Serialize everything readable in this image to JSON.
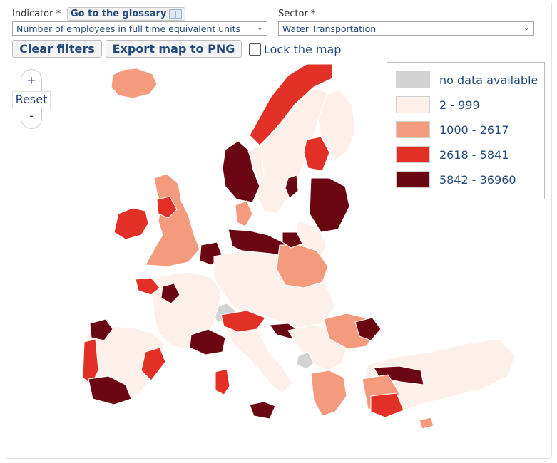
{
  "filters": {
    "indicator_label": "Indicator *",
    "glossary_label": "Go to the glossary",
    "indicator_value": "Number of employees in full time equivalent units",
    "sector_label": "Sector *",
    "sector_value": "Water Transportation"
  },
  "buttons": {
    "clear_filters": "Clear filters",
    "export_png": "Export map to PNG",
    "lock_map": "Lock the map"
  },
  "zoom": {
    "plus": "+",
    "reset": "Reset",
    "minus": "-"
  },
  "legend": [
    {
      "label": "no data available",
      "color": "#d3d3d3"
    },
    {
      "label": "2 - 999",
      "color": "#fdf0ea"
    },
    {
      "label": "1000 - 2617",
      "color": "#f59b7d"
    },
    {
      "label": "2618 - 5841",
      "color": "#e33027"
    },
    {
      "label": "5842 - 36960",
      "color": "#6b0712"
    }
  ],
  "map": {
    "regions": [
      {
        "name": "iceland",
        "class": 2
      },
      {
        "name": "ireland",
        "class": 3
      },
      {
        "name": "great-britain",
        "class": 2
      },
      {
        "name": "scotland-north",
        "class": 3
      },
      {
        "name": "norway-west",
        "class": 4
      },
      {
        "name": "norway-north",
        "class": 3
      },
      {
        "name": "norway-east",
        "class": 1
      },
      {
        "name": "sweden",
        "class": 1
      },
      {
        "name": "sweden-stockholm",
        "class": 4
      },
      {
        "name": "finland",
        "class": 1
      },
      {
        "name": "finland-east",
        "class": 3
      },
      {
        "name": "finland-south",
        "class": 4
      },
      {
        "name": "denmark",
        "class": 2
      },
      {
        "name": "baltic-states",
        "class": 1
      },
      {
        "name": "germany-north",
        "class": 4
      },
      {
        "name": "netherlands",
        "class": 4
      },
      {
        "name": "central-europe",
        "class": 1
      },
      {
        "name": "switzerland",
        "class": 0
      },
      {
        "name": "poland",
        "class": 2
      },
      {
        "name": "poland-gdansk",
        "class": 4
      },
      {
        "name": "france",
        "class": 1
      },
      {
        "name": "france-brittany",
        "class": 3
      },
      {
        "name": "france-paris",
        "class": 4
      },
      {
        "name": "france-south",
        "class": 4
      },
      {
        "name": "iberia",
        "class": 1
      },
      {
        "name": "spain-north",
        "class": 4
      },
      {
        "name": "portugal",
        "class": 3
      },
      {
        "name": "spain-south",
        "class": 4
      },
      {
        "name": "spain-east",
        "class": 3
      },
      {
        "name": "italy",
        "class": 1
      },
      {
        "name": "italy-north",
        "class": 3
      },
      {
        "name": "sicily",
        "class": 4
      },
      {
        "name": "sardinia",
        "class": 3
      },
      {
        "name": "croatia",
        "class": 4
      },
      {
        "name": "balkans",
        "class": 1
      },
      {
        "name": "albania",
        "class": 0
      },
      {
        "name": "romania",
        "class": 2
      },
      {
        "name": "romania-constanta",
        "class": 4
      },
      {
        "name": "greece",
        "class": 2
      },
      {
        "name": "turkey",
        "class": 1
      },
      {
        "name": "turkey-istanbul",
        "class": 4
      },
      {
        "name": "turkey-west",
        "class": 2
      },
      {
        "name": "turkey-south",
        "class": 3
      },
      {
        "name": "cyprus",
        "class": 2
      }
    ]
  }
}
